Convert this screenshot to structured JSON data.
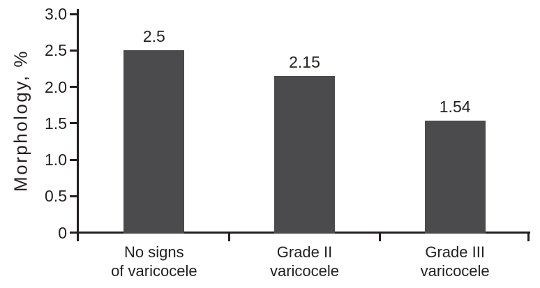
{
  "chart_data": {
    "type": "bar",
    "title": "",
    "xlabel": "",
    "ylabel": "Morphology, %",
    "ylim": [
      0,
      3.0
    ],
    "grid": false,
    "legend": "none",
    "yticks": [
      {
        "value": 0,
        "label": "0"
      },
      {
        "value": 0.5,
        "label": "0.5"
      },
      {
        "value": 1.0,
        "label": "1.0"
      },
      {
        "value": 1.5,
        "label": "1.5"
      },
      {
        "value": 2.0,
        "label": "2.0"
      },
      {
        "value": 2.5,
        "label": "2.5"
      },
      {
        "value": 3.0,
        "label": "3.0"
      }
    ],
    "categories": [
      {
        "lines": [
          "No signs",
          "of varicocele"
        ]
      },
      {
        "lines": [
          "Grade II",
          "varicocele"
        ]
      },
      {
        "lines": [
          "Grade III",
          "varicocele"
        ]
      }
    ],
    "values": [
      2.5,
      2.15,
      1.54
    ],
    "value_labels": [
      "2.5",
      "2.15",
      "1.54"
    ],
    "bar_color": "#4b4b4d",
    "text_color": "#231f20",
    "axis_color": "#231f20"
  }
}
